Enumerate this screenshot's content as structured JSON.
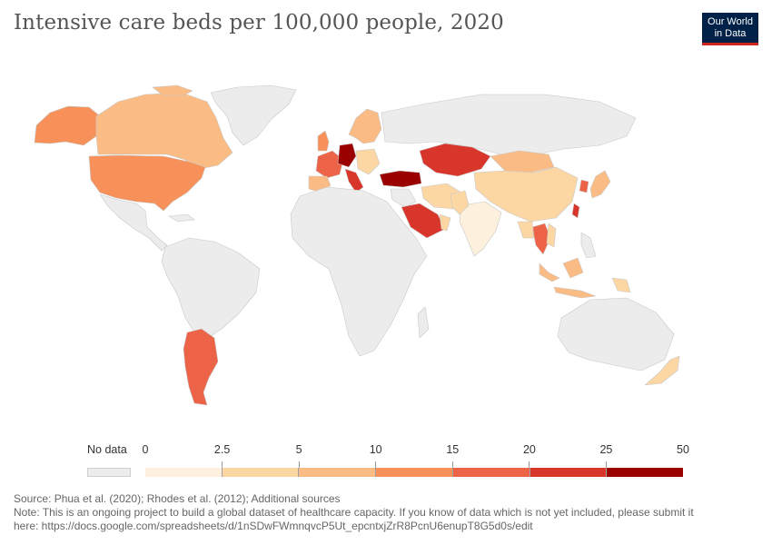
{
  "header": {
    "title": "Intensive care beds per 100,000 people, 2020",
    "logo_line1": "Our World",
    "logo_line2": "in Data"
  },
  "legend": {
    "no_data_label": "No data",
    "no_data_color": "#ececec",
    "bins": [
      {
        "label": "0",
        "color": "#fdf0dc"
      },
      {
        "label": "2.5",
        "color": "#fcd6a3"
      },
      {
        "label": "5",
        "color": "#fbbb84"
      },
      {
        "label": "10",
        "color": "#f79159"
      },
      {
        "label": "15",
        "color": "#ec6348"
      },
      {
        "label": "20",
        "color": "#d8362b"
      },
      {
        "label": "25",
        "color": "#9a0000"
      }
    ],
    "end_label": "50"
  },
  "map": {
    "ocean": "#ffffff",
    "no_data_fill": "#ececec",
    "border": "#d0d0d0"
  },
  "footer": {
    "source": "Source: Phua et al. (2020); Rhodes et al. (2012); Additional sources",
    "note_line1": "Note: This is an ongoing project to build a global dataset of healthcare capacity. If you know of data which is not yet included, please submit it",
    "note_line2": "here: https://docs.google.com/spreadsheets/d/1nSDwFWmnqvcP5Ut_epcntxjZrR8PcnU6enupT8G5d0s/edit"
  }
}
